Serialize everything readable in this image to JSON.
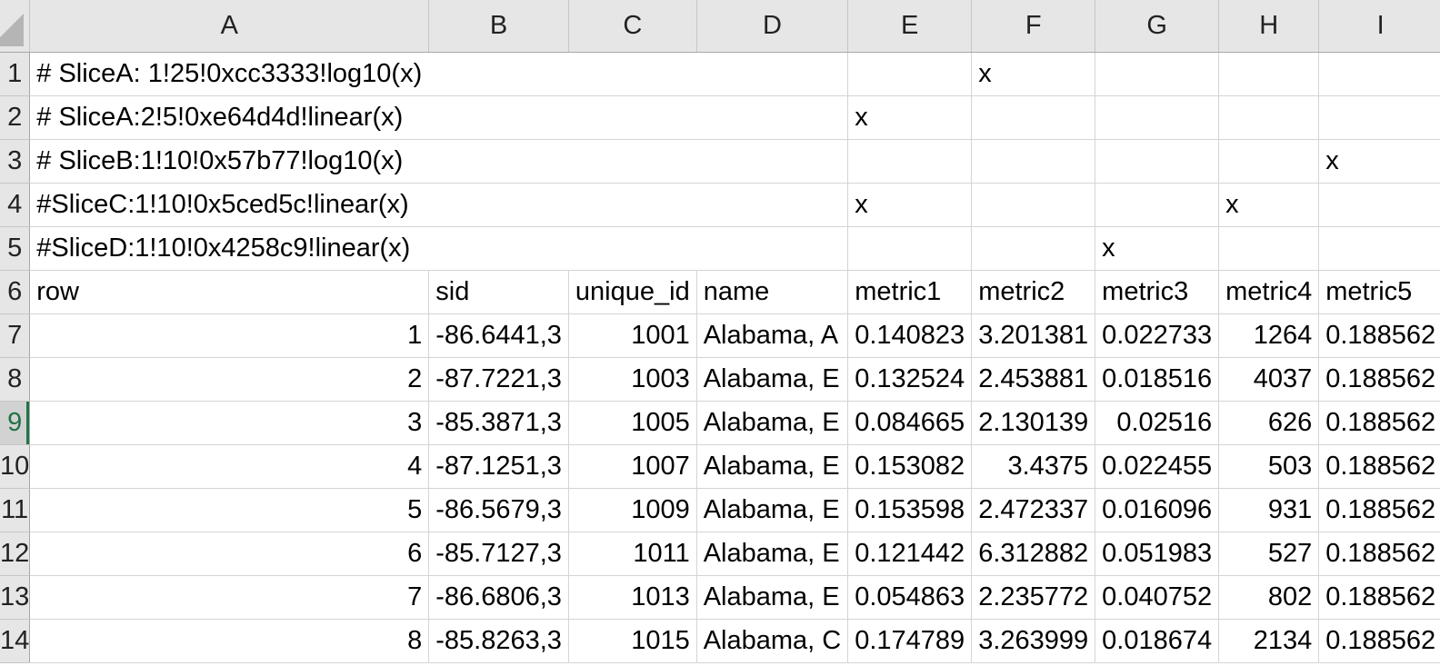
{
  "columns": [
    "A",
    "B",
    "C",
    "D",
    "E",
    "F",
    "G",
    "H",
    "I"
  ],
  "rows": [
    {
      "num": "1",
      "cells": [
        "# SliceA: 1!25!0xcc3333!log10(x)",
        "",
        "",
        "",
        "",
        "x",
        "",
        "",
        ""
      ]
    },
    {
      "num": "2",
      "cells": [
        "# SliceA:2!5!0xe64d4d!linear(x)",
        "",
        "",
        "",
        "x",
        "",
        "",
        "",
        ""
      ]
    },
    {
      "num": "3",
      "cells": [
        "# SliceB:1!10!0x57b77!log10(x)",
        "",
        "",
        "",
        "",
        "",
        "",
        "",
        "x"
      ]
    },
    {
      "num": "4",
      "cells": [
        "#SliceC:1!10!0x5ced5c!linear(x)",
        "",
        "",
        "",
        "x",
        "",
        "",
        "x",
        ""
      ]
    },
    {
      "num": "5",
      "cells": [
        "#SliceD:1!10!0x4258c9!linear(x)",
        "",
        "",
        "",
        "",
        "",
        "x",
        "",
        ""
      ]
    },
    {
      "num": "6",
      "cells": [
        "row",
        "sid",
        "unique_id",
        "name",
        "metric1",
        "metric2",
        "metric3",
        "metric4",
        "metric5"
      ]
    },
    {
      "num": "7",
      "cells": [
        "1",
        "-86.6441,3",
        "1001",
        "Alabama, A",
        "0.140823",
        "3.201381",
        "0.022733",
        "1264",
        "0.188562"
      ]
    },
    {
      "num": "8",
      "cells": [
        "2",
        "-87.7221,3",
        "1003",
        "Alabama, E",
        "0.132524",
        "2.453881",
        "0.018516",
        "4037",
        "0.188562"
      ]
    },
    {
      "num": "9",
      "cells": [
        "3",
        "-85.3871,3",
        "1005",
        "Alabama, E",
        "0.084665",
        "2.130139",
        "0.02516",
        "626",
        "0.188562"
      ]
    },
    {
      "num": "10",
      "cells": [
        "4",
        "-87.1251,3",
        "1007",
        "Alabama, E",
        "0.153082",
        "3.4375",
        "0.022455",
        "503",
        "0.188562"
      ]
    },
    {
      "num": "11",
      "cells": [
        "5",
        "-86.5679,3",
        "1009",
        "Alabama, E",
        "0.153598",
        "2.472337",
        "0.016096",
        "931",
        "0.188562"
      ]
    },
    {
      "num": "12",
      "cells": [
        "6",
        "-85.7127,3",
        "1011",
        "Alabama, E",
        "0.121442",
        "6.312882",
        "0.051983",
        "527",
        "0.188562"
      ]
    },
    {
      "num": "13",
      "cells": [
        "7",
        "-86.6806,3",
        "1013",
        "Alabama, E",
        "0.054863",
        "2.235772",
        "0.040752",
        "802",
        "0.188562"
      ]
    },
    {
      "num": "14",
      "cells": [
        "8",
        "-85.8263,3",
        "1015",
        "Alabama, C",
        "0.174789",
        "3.263999",
        "0.018674",
        "2134",
        "0.188562"
      ]
    }
  ],
  "active_row": "9"
}
